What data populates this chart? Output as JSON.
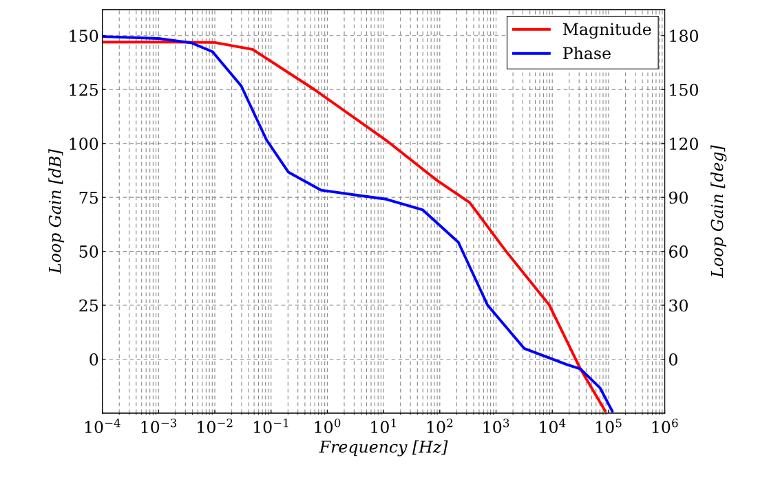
{
  "chart_data": {
    "type": "line",
    "xlabel": "Frequency [Hz]",
    "ylabel": "Loop Gain [dB]",
    "y2label": "Loop Gain [deg]",
    "log": "x",
    "grid": true,
    "legend": "top right",
    "marker": "none",
    "line_style": "solid",
    "xlim": [
      0.0001,
      1000000
    ],
    "xticks": [
      {
        "value": 0.0001,
        "label": "10$^{−4}$"
      },
      {
        "value": 0.001,
        "label": "10$^{−3}$"
      },
      {
        "value": 0.01,
        "label": "10$^{−2}$"
      },
      {
        "value": 0.1,
        "label": "10$^{−1}$"
      },
      {
        "value": 1,
        "label": "10$^{0}$"
      },
      {
        "value": 10,
        "label": "10$^{1}$"
      },
      {
        "value": 100,
        "label": "10$^{2}$"
      },
      {
        "value": 1000,
        "label": "10$^{3}$"
      },
      {
        "value": 10000,
        "label": "10$^{4}$"
      },
      {
        "value": 100000,
        "label": "10$^{5}$"
      },
      {
        "value": 1000000,
        "label": "10$^{6}$"
      }
    ],
    "ylim": [
      -25,
      162
    ],
    "yticks": [
      0,
      25,
      50,
      75,
      100,
      125,
      150
    ],
    "y2lim": [
      -30,
      194.4
    ],
    "y2ticks": [
      0,
      30,
      60,
      90,
      120,
      150,
      180
    ],
    "series": [
      {
        "name": "Magnitude",
        "color": "#ff0000",
        "x": [
          0.0001,
          0.001,
          0.01,
          0.047,
          0.59,
          11.2,
          89,
          339,
          1510,
          8900,
          31600,
          87000
        ],
        "values": [
          147,
          147,
          146.8,
          143.6,
          125,
          101.4,
          82.9,
          72.6,
          50,
          25,
          -4.5,
          -24
        ]
      },
      {
        "name": "Phase",
        "color": "#0000ff",
        "axis": "y2",
        "x": [
          0.0001,
          0.001,
          0.0038,
          0.0091,
          0.0295,
          0.083,
          0.204,
          0.78,
          11.2,
          50,
          214,
          708,
          3160,
          18200,
          31600,
          70800,
          117000
        ],
        "values": [
          179.5,
          178.4,
          176,
          171,
          152,
          122,
          104,
          94,
          89,
          83,
          65,
          30,
          6,
          -3,
          -5.4,
          -16,
          -29
        ]
      }
    ]
  }
}
